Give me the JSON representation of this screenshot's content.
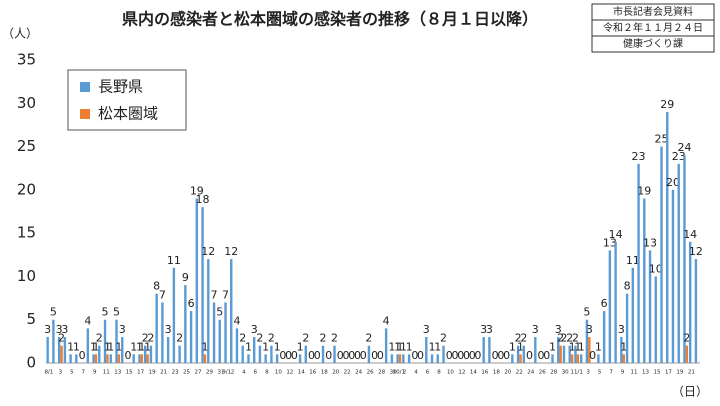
{
  "chart_data": {
    "type": "bar",
    "title": "県内の感染者と松本圏域の感染者の推移（８月１日以降）",
    "note_box": [
      "市長記者会見資料",
      "令和２年１１月２４日",
      "健康づくり課"
    ],
    "y_axis_label": "（人）",
    "x_axis_label": "（日）",
    "legend_position": "upper left",
    "ylim": [
      0,
      35
    ],
    "yticks": [
      0,
      5,
      10,
      15,
      20,
      25,
      30,
      35
    ],
    "grid": false,
    "categories": [
      "8/1",
      null,
      "3",
      null,
      "5",
      null,
      "7",
      null,
      "9",
      null,
      "11",
      null,
      "13",
      null,
      "15",
      null,
      "17",
      null,
      "19",
      null,
      "21",
      null,
      "23",
      null,
      "25",
      null,
      "27",
      null,
      "29",
      null,
      "31",
      "9/1",
      "2",
      null,
      "4",
      null,
      "6",
      null,
      "8",
      null,
      "10",
      null,
      "12",
      null,
      "14",
      null,
      "16",
      null,
      "18",
      null,
      "20",
      null,
      "22",
      null,
      "24",
      null,
      "26",
      null,
      "28",
      null,
      "30",
      "10/1",
      "2",
      null,
      "4",
      null,
      "6",
      null,
      "8",
      null,
      "10",
      null,
      "12",
      null,
      "14",
      null,
      "16",
      null,
      "18",
      null,
      "20",
      null,
      "22",
      null,
      "24",
      null,
      "26",
      null,
      "28",
      null,
      "30",
      null,
      "11/1",
      null,
      "3",
      null,
      "5",
      null,
      "7",
      null,
      "9",
      null,
      "11",
      null,
      "13",
      null,
      "15",
      null,
      "17",
      null,
      "19",
      null,
      "21",
      null
    ],
    "series": [
      {
        "name": "長野県",
        "color": "#5b9bd5",
        "values": [
          3,
          5,
          3,
          3,
          1,
          1,
          0,
          4,
          1,
          2,
          5,
          1,
          5,
          3,
          0,
          1,
          1,
          2,
          2,
          8,
          7,
          3,
          11,
          2,
          9,
          6,
          19,
          18,
          12,
          7,
          5,
          7,
          12,
          4,
          2,
          1,
          3,
          2,
          1,
          2,
          1,
          0,
          0,
          0,
          1,
          2,
          0,
          0,
          2,
          0,
          2,
          0,
          0,
          0,
          0,
          0,
          2,
          0,
          0,
          4,
          1,
          1,
          1,
          1,
          0,
          0,
          3,
          1,
          1,
          2,
          0,
          0,
          0,
          0,
          0,
          0,
          3,
          3,
          0,
          0,
          0,
          1,
          2,
          2,
          0,
          3,
          0,
          0,
          1,
          3,
          2,
          2,
          2,
          1,
          5,
          0,
          1,
          6,
          13,
          14,
          3,
          8,
          11,
          23,
          19,
          13,
          10,
          25,
          29,
          20,
          23,
          24,
          14,
          12
        ]
      },
      {
        "name": "松本圏域",
        "color": "#ed7d31",
        "values": [
          0,
          0,
          2,
          0,
          0,
          0,
          0,
          0,
          1,
          0,
          1,
          0,
          1,
          0,
          0,
          0,
          1,
          1,
          0,
          0,
          0,
          0,
          0,
          0,
          0,
          0,
          0,
          1,
          0,
          0,
          0,
          0,
          0,
          0,
          0,
          0,
          0,
          0,
          0,
          0,
          0,
          0,
          0,
          0,
          0,
          0,
          0,
          0,
          0,
          0,
          0,
          0,
          0,
          0,
          0,
          0,
          0,
          0,
          0,
          0,
          0,
          1,
          0,
          0,
          0,
          0,
          0,
          0,
          0,
          0,
          0,
          0,
          0,
          0,
          0,
          0,
          0,
          0,
          0,
          0,
          0,
          0,
          1,
          0,
          0,
          0,
          0,
          0,
          0,
          2,
          0,
          1,
          1,
          0,
          3,
          0,
          0,
          0,
          0,
          0,
          1,
          0,
          0,
          0,
          0,
          0,
          0,
          0,
          0,
          0,
          0,
          2,
          0,
          0
        ]
      }
    ]
  }
}
